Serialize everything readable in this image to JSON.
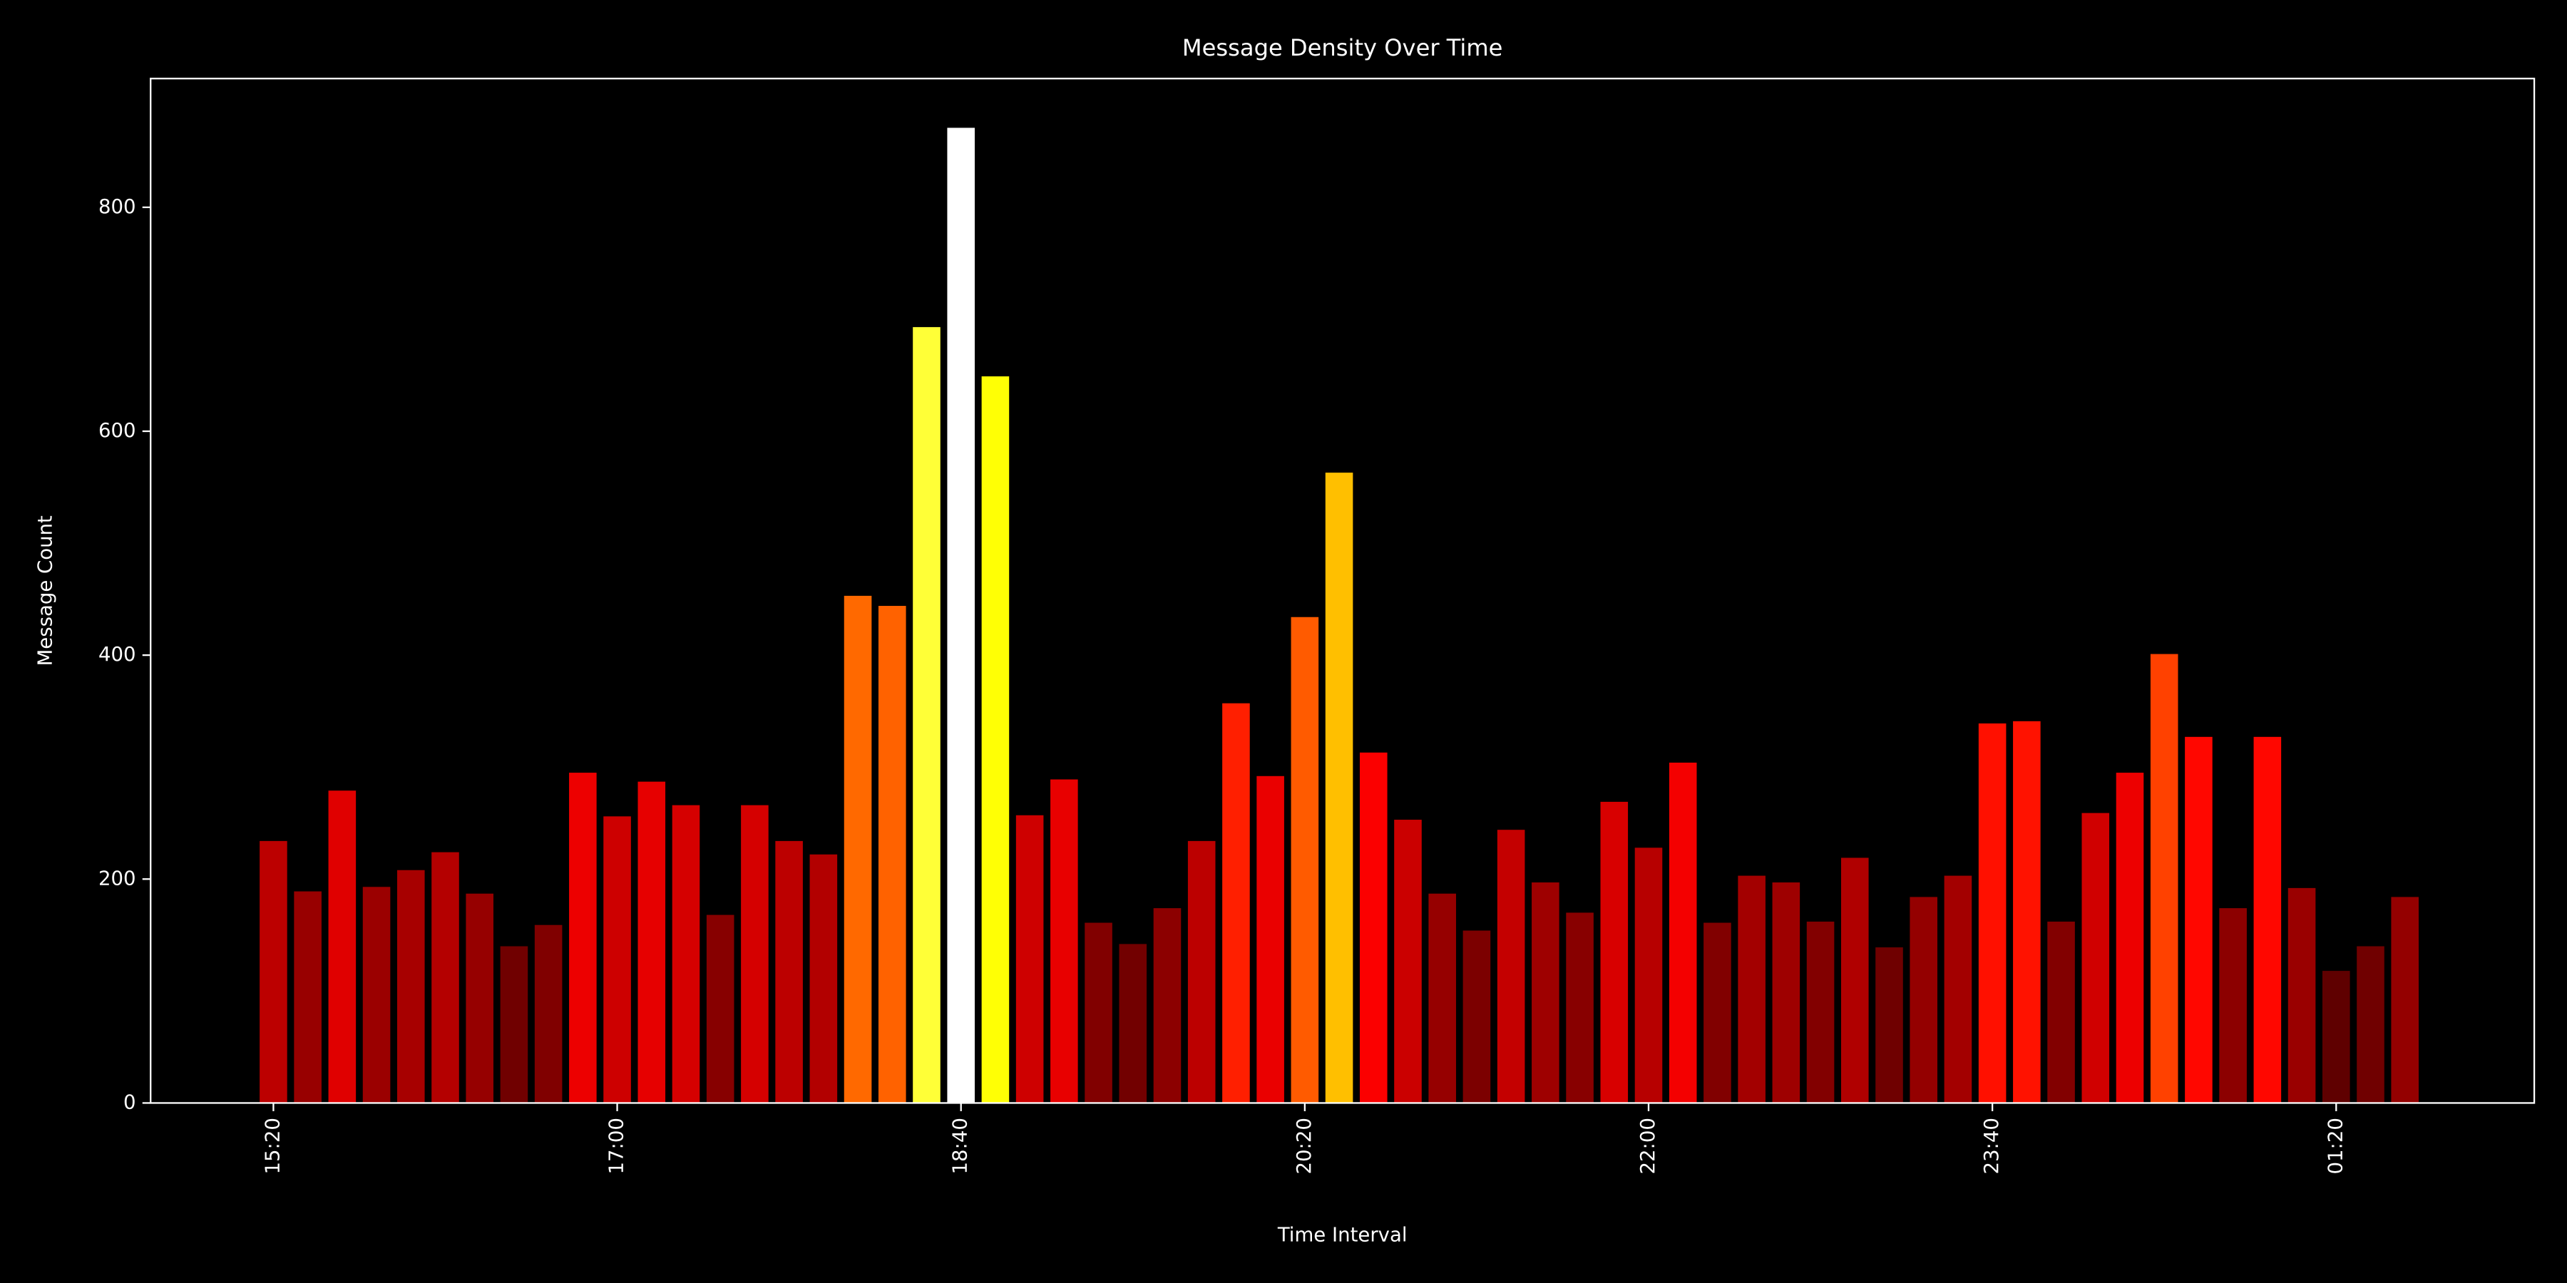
{
  "chart_data": {
    "type": "bar",
    "title": "Message Density Over Time",
    "xlabel": "Time Interval",
    "ylabel": "Message Count",
    "categories": [
      "15:20",
      null,
      null,
      null,
      null,
      null,
      null,
      null,
      null,
      null,
      "17:00",
      null,
      null,
      null,
      null,
      null,
      null,
      null,
      null,
      null,
      "18:40",
      null,
      null,
      null,
      null,
      null,
      null,
      null,
      null,
      null,
      "20:20",
      null,
      null,
      null,
      null,
      null,
      null,
      null,
      null,
      null,
      "22:00",
      null,
      null,
      null,
      null,
      null,
      null,
      null,
      null,
      null,
      "23:40",
      null,
      null,
      null,
      null,
      null,
      null,
      null,
      null,
      null,
      "01:20",
      null,
      null
    ],
    "values": [
      234,
      189,
      279,
      193,
      208,
      224,
      187,
      140,
      159,
      295,
      256,
      287,
      266,
      168,
      266,
      234,
      222,
      453,
      444,
      693,
      871,
      649,
      257,
      289,
      161,
      142,
      174,
      234,
      357,
      292,
      434,
      563,
      313,
      253,
      187,
      154,
      244,
      197,
      170,
      269,
      228,
      304,
      161,
      203,
      197,
      162,
      219,
      139,
      184,
      203,
      339,
      341,
      162,
      259,
      295,
      401,
      327,
      174,
      327,
      192,
      118,
      140,
      184
    ],
    "colormap": "hot",
    "ylim": [
      0,
      915
    ],
    "yticks": [
      0,
      200,
      400,
      600,
      800
    ],
    "background": "#000000",
    "axis_color": "#ffffff"
  }
}
